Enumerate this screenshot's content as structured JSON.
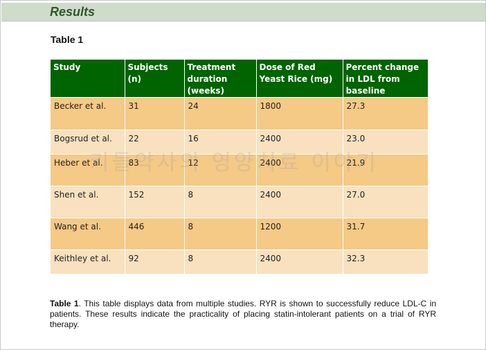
{
  "header": {
    "title": "Results"
  },
  "table_label": "Table 1",
  "table": {
    "columns": [
      "Study",
      "Subjects (n)",
      "Treatment duration (weeks)",
      "Dose of Red Yeast Rice (mg)",
      "Percent change in LDL from baseline"
    ],
    "rows": [
      [
        "Becker et al.",
        "31",
        "24",
        "1800",
        "27.3"
      ],
      [
        "Bogsrud et al.",
        "22",
        "16",
        "2400",
        "23.0"
      ],
      [
        "Heber et al.",
        "83",
        "12",
        "2400",
        "21.9"
      ],
      [
        "Shen et al.",
        "152",
        "8",
        "2400",
        "27.0"
      ],
      [
        "Wang et al.",
        "446",
        "8",
        "1200",
        "31.7"
      ],
      [
        "Keithley et al.",
        "92",
        "8",
        "2400",
        "32.3"
      ]
    ]
  },
  "watermark": "키들약사의 영양치료 이야기",
  "caption": {
    "label": "Table 1",
    "text": ".  This table displays data from multiple studies.  RYR is shown to successfully reduce LDL-C in patients.  These results indicate the practicality of placing statin-intolerant patients on a trial of RYR therapy."
  },
  "colors": {
    "header_band": "#cfdccb",
    "title_green": "#2d5a27",
    "table_header": "#006400",
    "row_odd": "#f5c986",
    "row_even": "#f9e1bf"
  }
}
